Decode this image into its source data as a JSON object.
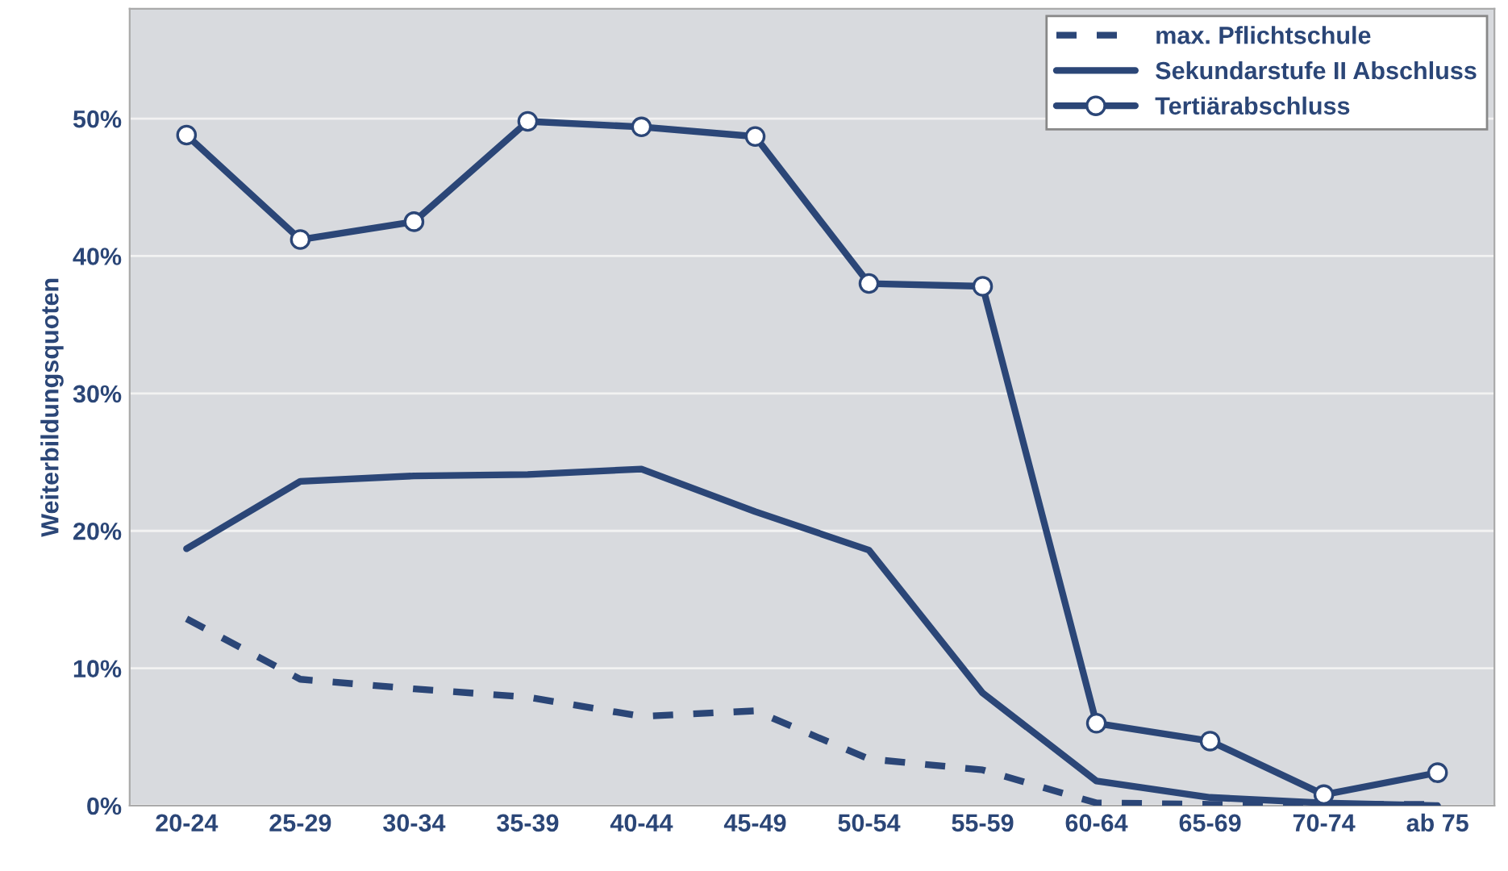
{
  "chart_data": {
    "type": "line",
    "ylabel": "Weiterbildungsquoten",
    "categories": [
      "20-24",
      "25-29",
      "30-34",
      "35-39",
      "40-44",
      "45-49",
      "50-54",
      "55-59",
      "60-64",
      "65-69",
      "70-74",
      "ab 75"
    ],
    "series": [
      {
        "name": "max. Pflichtschule",
        "color": "#2b4677",
        "line_style": "dashed",
        "marker": "none",
        "values": [
          13.6,
          9.2,
          8.5,
          7.9,
          6.5,
          6.9,
          3.4,
          2.6,
          0.2,
          0.1,
          0.1,
          0.1
        ]
      },
      {
        "name": "Sekundarstufe II Abschluss",
        "color": "#2b4677",
        "line_style": "solid",
        "marker": "none",
        "values": [
          18.7,
          23.6,
          24.0,
          24.1,
          24.5,
          21.4,
          18.6,
          8.2,
          1.8,
          0.6,
          0.2,
          0.0
        ]
      },
      {
        "name": "Tertiärabschluss",
        "color": "#2b4677",
        "line_style": "solid",
        "marker": "circle",
        "values": [
          48.8,
          41.2,
          42.5,
          49.8,
          49.4,
          48.7,
          38.0,
          37.8,
          6.0,
          4.7,
          0.8,
          2.4
        ]
      }
    ],
    "ylim": [
      0,
      58
    ],
    "yticks": [
      {
        "value": 0,
        "label": "0%"
      },
      {
        "value": 10,
        "label": "10%"
      },
      {
        "value": 20,
        "label": "20%"
      },
      {
        "value": 30,
        "label": "30%"
      },
      {
        "value": 40,
        "label": "40%"
      },
      {
        "value": 50,
        "label": "50%"
      }
    ],
    "grid": "y",
    "legend": "top right"
  }
}
